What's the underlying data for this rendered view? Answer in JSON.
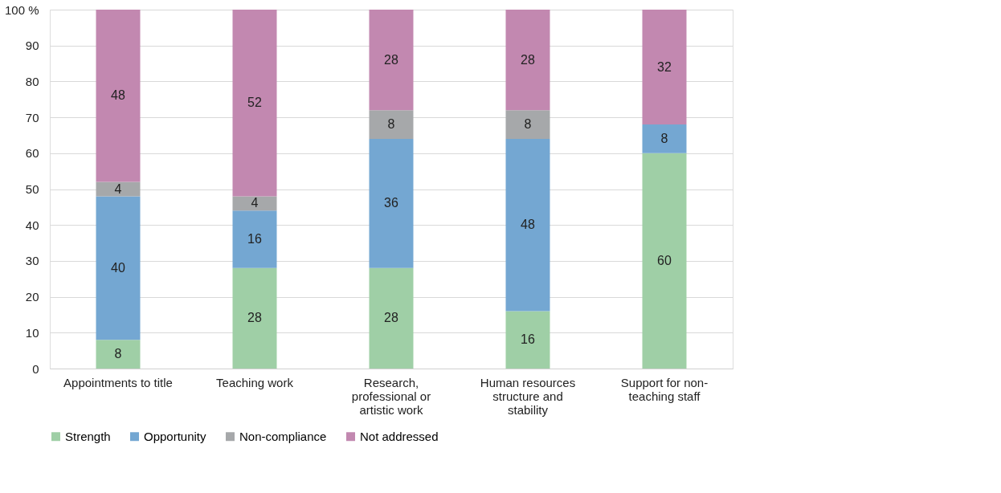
{
  "chart_data": {
    "type": "bar",
    "stacked": true,
    "categories": [
      "Appointments to title",
      "Teaching work",
      "Research, professional or artistic work",
      "Human resources structure and stability",
      "Support for non-teaching staff"
    ],
    "series": [
      {
        "name": "Strength",
        "color": "#9fcfa6",
        "values": [
          8,
          28,
          28,
          16,
          60
        ]
      },
      {
        "name": "Opportunity",
        "color": "#74a7d2",
        "values": [
          40,
          16,
          36,
          48,
          8
        ]
      },
      {
        "name": "Non-compliance",
        "color": "#a6a8aa",
        "values": [
          4,
          4,
          8,
          8,
          null
        ]
      },
      {
        "name": "Not addressed",
        "color": "#c288b0",
        "values": [
          48,
          52,
          28,
          28,
          32
        ]
      }
    ],
    "ylim": [
      0,
      100
    ],
    "yticks": [
      0,
      10,
      20,
      30,
      40,
      50,
      60,
      70,
      80,
      90,
      {
        "value": 100,
        "label": "100 %"
      }
    ],
    "grid": "y",
    "legend": "bottom",
    "data_labels": true
  }
}
